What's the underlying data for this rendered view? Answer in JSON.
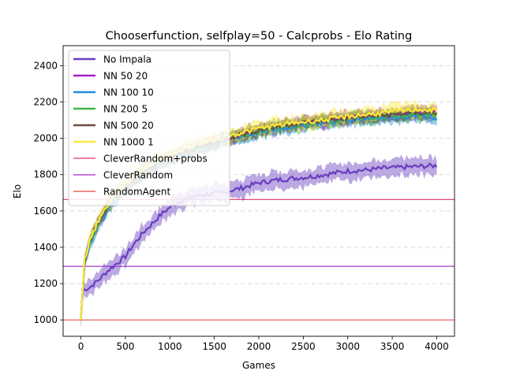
{
  "chart_data": {
    "type": "line",
    "title": "Chooserfunction, selfplay=50 - Calcprobs - Elo Rating",
    "xlabel": "Games",
    "ylabel": "Elo",
    "xlim": [
      -200,
      4200
    ],
    "ylim": [
      910,
      2510
    ],
    "xticks": [
      0,
      500,
      1000,
      1500,
      2000,
      2500,
      3000,
      3500,
      4000
    ],
    "yticks": [
      1000,
      1200,
      1400,
      1600,
      1800,
      2000,
      2200,
      2400
    ],
    "grid": "horizontal dashed",
    "legend_position": "top-left",
    "series": [
      {
        "name": "No Impala",
        "color": "#6a3dbf",
        "band": 50,
        "points": [
          [
            0,
            1000
          ],
          [
            20,
            1160
          ],
          [
            50,
            1170
          ],
          [
            100,
            1180
          ],
          [
            150,
            1200
          ],
          [
            200,
            1220
          ],
          [
            300,
            1270
          ],
          [
            400,
            1310
          ],
          [
            500,
            1350
          ],
          [
            600,
            1420
          ],
          [
            700,
            1480
          ],
          [
            800,
            1530
          ],
          [
            900,
            1580
          ],
          [
            1000,
            1620
          ],
          [
            1100,
            1650
          ],
          [
            1200,
            1670
          ],
          [
            1300,
            1685
          ],
          [
            1400,
            1690
          ],
          [
            1500,
            1695
          ],
          [
            1600,
            1700
          ],
          [
            1700,
            1715
          ],
          [
            1800,
            1725
          ],
          [
            1900,
            1740
          ],
          [
            2000,
            1755
          ],
          [
            2200,
            1770
          ],
          [
            2400,
            1780
          ],
          [
            2600,
            1790
          ],
          [
            2800,
            1805
          ],
          [
            3000,
            1820
          ],
          [
            3200,
            1825
          ],
          [
            3400,
            1835
          ],
          [
            3600,
            1840
          ],
          [
            3800,
            1845
          ],
          [
            4000,
            1850
          ]
        ]
      },
      {
        "name": "NN 50 20",
        "color": "#a520c8",
        "band": 35,
        "points": [
          [
            0,
            1000
          ],
          [
            40,
            1320
          ],
          [
            100,
            1430
          ],
          [
            200,
            1540
          ],
          [
            300,
            1620
          ],
          [
            400,
            1680
          ],
          [
            500,
            1730
          ],
          [
            600,
            1770
          ],
          [
            700,
            1810
          ],
          [
            800,
            1840
          ],
          [
            900,
            1870
          ],
          [
            1000,
            1890
          ],
          [
            1200,
            1930
          ],
          [
            1400,
            1960
          ],
          [
            1600,
            1990
          ],
          [
            1800,
            2015
          ],
          [
            2000,
            2040
          ],
          [
            2200,
            2060
          ],
          [
            2400,
            2075
          ],
          [
            2600,
            2090
          ],
          [
            2800,
            2100
          ],
          [
            3000,
            2110
          ],
          [
            3200,
            2120
          ],
          [
            3400,
            2125
          ],
          [
            3600,
            2130
          ],
          [
            3800,
            2140
          ],
          [
            4000,
            2140
          ]
        ]
      },
      {
        "name": "NN 100 10",
        "color": "#1f8fe0",
        "band": 35,
        "points": [
          [
            0,
            1000
          ],
          [
            40,
            1300
          ],
          [
            100,
            1420
          ],
          [
            200,
            1530
          ],
          [
            300,
            1610
          ],
          [
            400,
            1675
          ],
          [
            500,
            1725
          ],
          [
            600,
            1765
          ],
          [
            700,
            1805
          ],
          [
            800,
            1835
          ],
          [
            900,
            1865
          ],
          [
            1000,
            1885
          ],
          [
            1200,
            1925
          ],
          [
            1400,
            1955
          ],
          [
            1600,
            1985
          ],
          [
            1800,
            2010
          ],
          [
            2000,
            2030
          ],
          [
            2200,
            2050
          ],
          [
            2400,
            2065
          ],
          [
            2600,
            2080
          ],
          [
            2800,
            2090
          ],
          [
            3000,
            2100
          ],
          [
            3200,
            2110
          ],
          [
            3400,
            2115
          ],
          [
            3600,
            2120
          ],
          [
            3800,
            2125
          ],
          [
            4000,
            2110
          ]
        ]
      },
      {
        "name": "NN 200 5",
        "color": "#3cb44b",
        "band": 35,
        "points": [
          [
            0,
            1000
          ],
          [
            40,
            1310
          ],
          [
            100,
            1430
          ],
          [
            200,
            1540
          ],
          [
            300,
            1620
          ],
          [
            400,
            1680
          ],
          [
            500,
            1730
          ],
          [
            600,
            1770
          ],
          [
            700,
            1810
          ],
          [
            800,
            1840
          ],
          [
            900,
            1870
          ],
          [
            1000,
            1890
          ],
          [
            1200,
            1930
          ],
          [
            1400,
            1960
          ],
          [
            1600,
            1990
          ],
          [
            1800,
            2020
          ],
          [
            2000,
            2040
          ],
          [
            2200,
            2060
          ],
          [
            2400,
            2070
          ],
          [
            2600,
            2085
          ],
          [
            2800,
            2095
          ],
          [
            3000,
            2105
          ],
          [
            3200,
            2115
          ],
          [
            3400,
            2120
          ],
          [
            3600,
            2125
          ],
          [
            3800,
            2130
          ],
          [
            4000,
            2135
          ]
        ]
      },
      {
        "name": "NN 500 20",
        "color": "#6d4c41",
        "band": 35,
        "points": [
          [
            0,
            1000
          ],
          [
            40,
            1320
          ],
          [
            100,
            1440
          ],
          [
            200,
            1550
          ],
          [
            300,
            1630
          ],
          [
            400,
            1690
          ],
          [
            500,
            1740
          ],
          [
            600,
            1780
          ],
          [
            700,
            1815
          ],
          [
            800,
            1845
          ],
          [
            900,
            1870
          ],
          [
            1000,
            1890
          ],
          [
            1200,
            1930
          ],
          [
            1400,
            1965
          ],
          [
            1600,
            1995
          ],
          [
            1800,
            2020
          ],
          [
            2000,
            2045
          ],
          [
            2200,
            2065
          ],
          [
            2400,
            2080
          ],
          [
            2600,
            2090
          ],
          [
            2800,
            2100
          ],
          [
            3000,
            2110
          ],
          [
            3200,
            2120
          ],
          [
            3400,
            2125
          ],
          [
            3600,
            2135
          ],
          [
            3800,
            2140
          ],
          [
            4000,
            2140
          ]
        ]
      },
      {
        "name": "NN 1000 1",
        "color": "#ffe83a",
        "band": 40,
        "points": [
          [
            0,
            1000
          ],
          [
            40,
            1330
          ],
          [
            100,
            1440
          ],
          [
            200,
            1550
          ],
          [
            300,
            1630
          ],
          [
            400,
            1700
          ],
          [
            500,
            1750
          ],
          [
            600,
            1790
          ],
          [
            700,
            1830
          ],
          [
            800,
            1860
          ],
          [
            900,
            1890
          ],
          [
            1000,
            1910
          ],
          [
            1200,
            1950
          ],
          [
            1400,
            1980
          ],
          [
            1600,
            2005
          ],
          [
            1800,
            2030
          ],
          [
            2000,
            2055
          ],
          [
            2200,
            2070
          ],
          [
            2400,
            2085
          ],
          [
            2600,
            2095
          ],
          [
            2800,
            2105
          ],
          [
            3000,
            2120
          ],
          [
            3200,
            2130
          ],
          [
            3400,
            2140
          ],
          [
            3600,
            2150
          ],
          [
            3800,
            2160
          ],
          [
            4000,
            2150
          ]
        ]
      }
    ],
    "hlines": [
      {
        "name": "CleverRandom+probs",
        "value": 1663,
        "color": "#e0306b"
      },
      {
        "name": "CleverRandom",
        "value": 1295,
        "color": "#a726c9"
      },
      {
        "name": "RandomAgent",
        "value": 1000,
        "color": "#e8453c"
      }
    ]
  }
}
